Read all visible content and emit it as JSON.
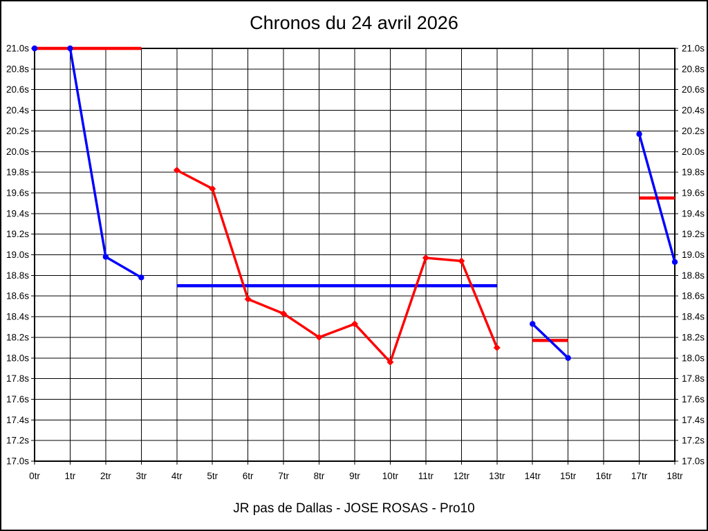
{
  "chart_data": {
    "type": "line",
    "title": "Chronos du 24 avril 2026",
    "caption": "JR pas de Dallas - JOSE ROSAS - Pro10",
    "x_unit": "tr",
    "y_unit": "s",
    "xlim": [
      0,
      18
    ],
    "ylim": [
      17.0,
      21.0
    ],
    "grid": true,
    "legend": "none",
    "colors": {
      "red": "#ff0000",
      "blue": "#0000ff",
      "grid": "#000000",
      "text": "#000000"
    },
    "x_tick_labels": [
      "0tr",
      "1tr",
      "2tr",
      "3tr",
      "4tr",
      "5tr",
      "6tr",
      "7tr",
      "8tr",
      "9tr",
      "10tr",
      "11tr",
      "12tr",
      "13tr",
      "14tr",
      "15tr",
      "16tr",
      "17tr",
      "18tr"
    ],
    "y_tick_labels": [
      "21.0s",
      "20.8s",
      "20.6s",
      "20.4s",
      "20.2s",
      "20.0s",
      "19.8s",
      "19.6s",
      "19.4s",
      "19.2s",
      "19.0s",
      "18.8s",
      "18.6s",
      "18.4s",
      "18.2s",
      "18.0s",
      "17.8s",
      "17.6s",
      "17.4s",
      "17.2s",
      "17.0s"
    ],
    "series": [
      {
        "name": "blue-run-1",
        "color": "#0000ff",
        "marker": "circle",
        "points": [
          [
            0,
            21.0
          ],
          [
            1,
            21.0
          ],
          [
            2,
            18.98
          ],
          [
            3,
            18.78
          ]
        ]
      },
      {
        "name": "red-run",
        "color": "#ff0000",
        "marker": "diamond",
        "points": [
          [
            4,
            19.82
          ],
          [
            5,
            19.64
          ],
          [
            6,
            18.57
          ],
          [
            7,
            18.43
          ],
          [
            8,
            18.2
          ],
          [
            9,
            18.33
          ],
          [
            10,
            17.96
          ],
          [
            11,
            18.97
          ],
          [
            12,
            18.94
          ],
          [
            13,
            18.1
          ]
        ]
      },
      {
        "name": "blue-run-2",
        "color": "#0000ff",
        "marker": "circle",
        "points": [
          [
            14,
            18.33
          ],
          [
            15,
            18.0
          ]
        ]
      },
      {
        "name": "blue-run-3",
        "color": "#0000ff",
        "marker": "circle",
        "points": [
          [
            17,
            20.17
          ],
          [
            18,
            18.93
          ]
        ]
      }
    ],
    "reference_lines": [
      {
        "name": "red-avg-line-0-3",
        "color": "#ff0000",
        "from_x": 0,
        "to_x": 3,
        "y": 21.0
      },
      {
        "name": "blue-avg-line-4-13",
        "color": "#0000ff",
        "from_x": 4,
        "to_x": 13,
        "y": 18.7
      },
      {
        "name": "red-avg-line-14-15",
        "color": "#ff0000",
        "from_x": 14,
        "to_x": 15,
        "y": 18.17
      },
      {
        "name": "red-avg-line-17-18",
        "color": "#ff0000",
        "from_x": 17,
        "to_x": 18,
        "y": 19.55
      }
    ]
  }
}
